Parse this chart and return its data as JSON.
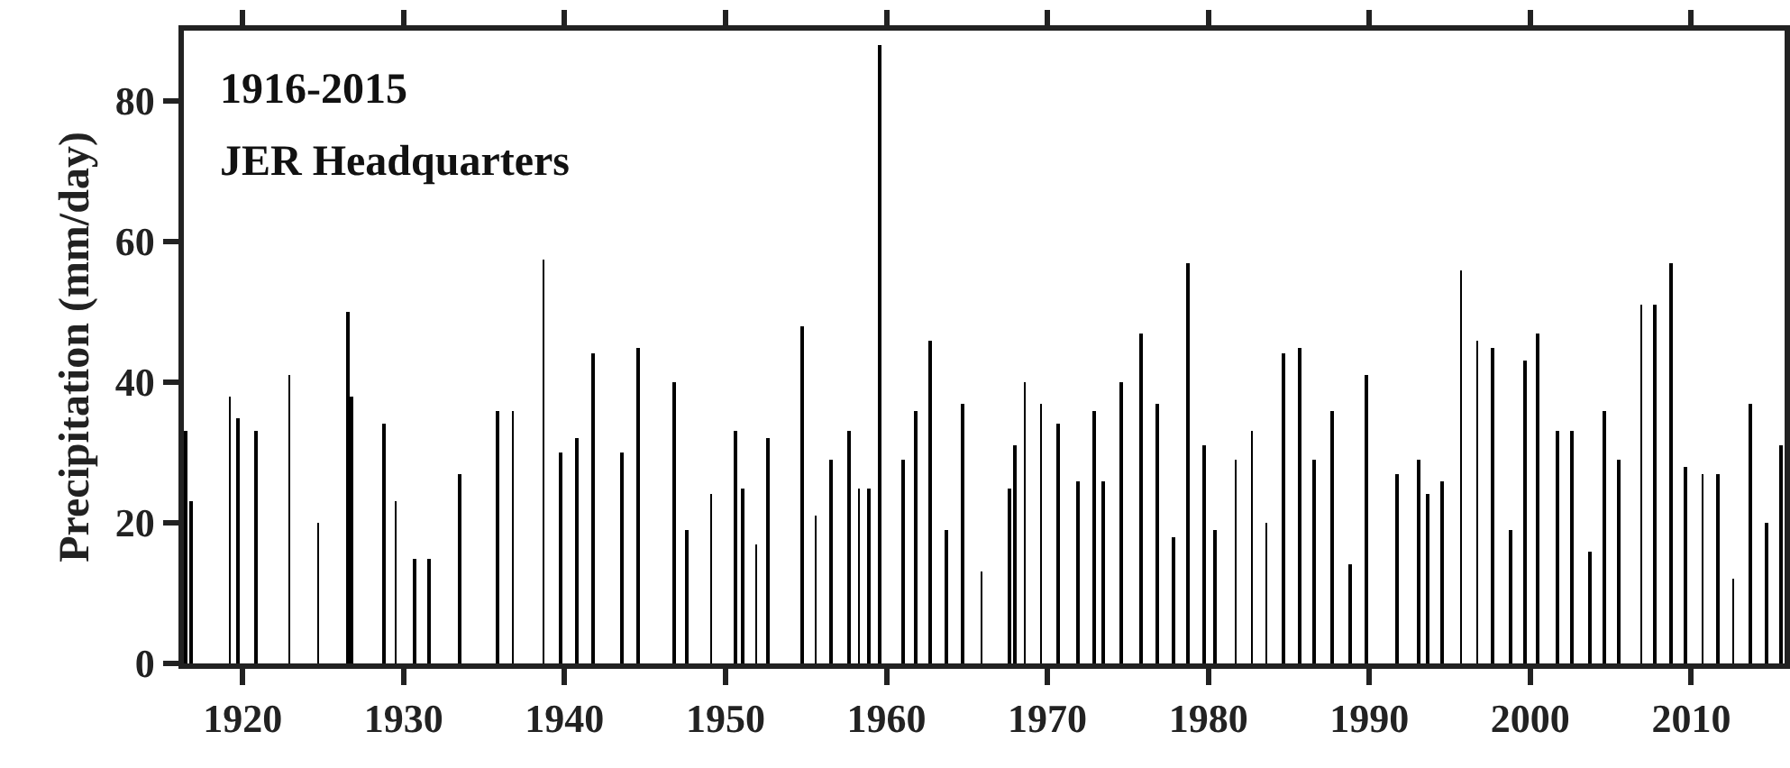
{
  "chart_data": {
    "type": "bar",
    "ylabel": "Precipitation (mm/day)",
    "annotations": [
      "1916-2015",
      "JER Headquarters"
    ],
    "color": "#000000",
    "x": [
      1916.46,
      1916.8,
      1919.2,
      1919.7,
      1920.8,
      1922.9,
      1924.7,
      1926.5,
      1926.8,
      1928.8,
      1929.5,
      1930.7,
      1931.6,
      1933.5,
      1935.8,
      1936.8,
      1938.7,
      1939.8,
      1940.8,
      1941.8,
      1943.6,
      1944.6,
      1946.8,
      1947.6,
      1949.1,
      1950.6,
      1951.1,
      1951.9,
      1952.6,
      1954.8,
      1955.6,
      1956.6,
      1957.7,
      1958.3,
      1958.9,
      1959.6,
      1961.0,
      1961.8,
      1962.7,
      1963.7,
      1964.7,
      1965.9,
      1967.6,
      1968.0,
      1968.6,
      1969.6,
      1970.7,
      1971.9,
      1972.9,
      1973.5,
      1974.6,
      1975.8,
      1976.8,
      1977.8,
      1978.7,
      1979.7,
      1980.4,
      1981.7,
      1982.7,
      1983.6,
      1984.7,
      1985.7,
      1986.6,
      1987.7,
      1988.8,
      1989.8,
      1991.7,
      1993.1,
      1993.6,
      1994.5,
      1995.7,
      1996.7,
      1997.7,
      1998.8,
      1999.7,
      2000.5,
      2001.7,
      2002.6,
      2003.7,
      2004.6,
      2005.5,
      2006.9,
      2007.7,
      2008.7,
      2009.6,
      2010.7,
      2011.7,
      2012.6,
      2013.7,
      2014.7,
      2015.6
    ],
    "values": [
      33,
      23,
      38,
      35,
      33,
      41,
      20,
      50,
      38,
      34,
      23,
      15,
      15,
      27,
      36,
      36,
      57.5,
      30,
      32,
      44,
      30,
      45,
      40,
      19,
      24,
      33,
      25,
      17,
      32,
      48,
      21,
      29,
      33,
      25,
      25,
      88,
      29,
      36,
      46,
      19,
      37,
      13,
      25,
      31,
      40,
      37,
      34,
      26,
      36,
      26,
      40,
      47,
      37,
      18,
      57,
      31,
      19,
      29,
      33,
      20,
      44,
      45,
      29,
      36,
      14,
      41,
      27,
      29,
      24,
      26,
      56,
      46,
      45,
      19,
      43,
      47,
      33,
      33,
      16,
      36,
      29,
      51,
      51,
      57,
      28,
      27,
      27,
      12,
      37,
      20,
      31
    ],
    "xlim": [
      1916.35,
      2015.8
    ],
    "xticks": [
      1920,
      1930,
      1940,
      1950,
      1960,
      1970,
      1980,
      1990,
      2000,
      2010
    ],
    "ylim": [
      0,
      90
    ],
    "yticks": [
      0,
      20,
      40,
      60,
      80
    ],
    "grid": false,
    "legend": false
  }
}
